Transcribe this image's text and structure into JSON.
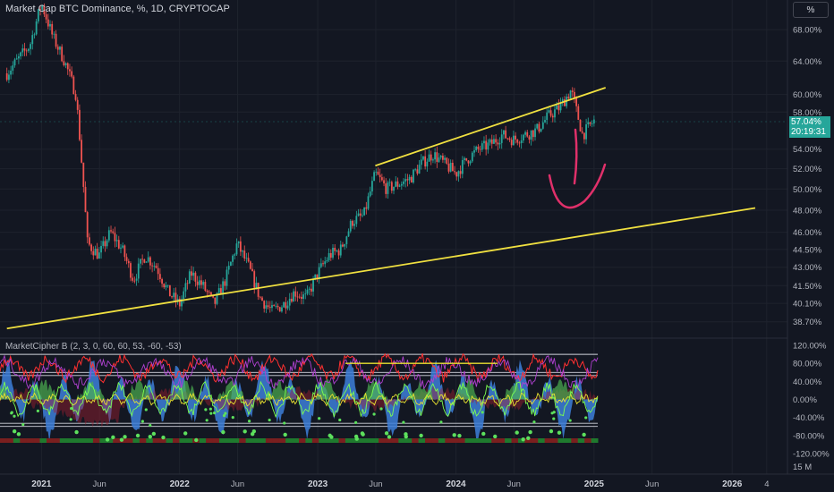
{
  "header": {
    "title": "Market Cap BTC Dominance, %, 1D, CRYPTOCAP",
    "unit_badge": "%"
  },
  "indicator": {
    "title": "MarketCipher B (2, 3, 0, 60, 60, 53, -60, -53)"
  },
  "price_badge": {
    "value": "57.04%",
    "countdown": "20:19:31"
  },
  "colors": {
    "background": "#131722",
    "trendline": "#f0e040",
    "annotation_arrow": "#e0306a",
    "up_candle": "#26a69a",
    "down_candle": "#ef5350",
    "wave_blue": "#3d7fd9",
    "wave_red": "#ff3030",
    "wave_green": "#4caf50",
    "money_flow_yellow": "#e8e030"
  },
  "chart_data": {
    "type": "candlestick",
    "title": "Market Cap BTC Dominance, %, 1D, CRYPTOCAP",
    "y_axis": {
      "scale": "log",
      "ylim": [
        37.5,
        72.0
      ],
      "ticks": [
        "68.00%",
        "64.00%",
        "60.00%",
        "58.00%",
        "54.00%",
        "52.00%",
        "50.00%",
        "48.00%",
        "46.00%",
        "44.50%",
        "43.00%",
        "41.50%",
        "40.10%",
        "38.70%"
      ]
    },
    "x_axis": {
      "ticks": [
        "2021",
        "Jun",
        "2022",
        "Jun",
        "2023",
        "Jun",
        "2024",
        "Jun",
        "2025",
        "Jun",
        "2026",
        "4"
      ]
    },
    "series": {
      "x": [
        "2020-10",
        "2020-12",
        "2021-01",
        "2021-02",
        "2021-03",
        "2021-04",
        "2021-05",
        "2021-06",
        "2021-07",
        "2021-08",
        "2021-09",
        "2021-10",
        "2021-11",
        "2021-12",
        "2022-01",
        "2022-02",
        "2022-03",
        "2022-04",
        "2022-05",
        "2022-06",
        "2022-07",
        "2022-08",
        "2022-09",
        "2022-10",
        "2022-11",
        "2022-12",
        "2023-01",
        "2023-02",
        "2023-03",
        "2023-04",
        "2023-05",
        "2023-06",
        "2023-07",
        "2023-08",
        "2023-09",
        "2023-10",
        "2023-11",
        "2023-12",
        "2024-01",
        "2024-02",
        "2024-03",
        "2024-04",
        "2024-05",
        "2024-06",
        "2024-07",
        "2024-08",
        "2024-09",
        "2024-10",
        "2024-11",
        "2024-12",
        "2025-01"
      ],
      "close": [
        62.5,
        66,
        71.5,
        67,
        64,
        60,
        45,
        44,
        46,
        44.5,
        42,
        44,
        43,
        41,
        40,
        42.5,
        41.5,
        40,
        42,
        45,
        43,
        40.5,
        39.5,
        40,
        41,
        40.5,
        42.5,
        44,
        44.5,
        47,
        47.5,
        51.5,
        50,
        50.5,
        51,
        52.5,
        53.5,
        52.5,
        51.5,
        53,
        54,
        54.5,
        55.5,
        55,
        55.5,
        56,
        57.5,
        58.5,
        60.5,
        55.5,
        57.04
      ]
    },
    "last_price": "57.04%",
    "trendlines": [
      {
        "name": "lower support",
        "from": [
          "2020-10",
          38.2
        ],
        "to": [
          "2026-03",
          48.2
        ]
      },
      {
        "name": "upper channel",
        "from": [
          "2023-06",
          52.3
        ],
        "to": [
          "2025-02",
          60.8
        ]
      }
    ],
    "indicator": {
      "name": "MarketCipher B",
      "params": [
        2,
        3,
        0,
        60,
        60,
        53,
        -60,
        -53
      ],
      "y_ticks": [
        "120.00%",
        "80.00%",
        "40.00%",
        "0.00%",
        "-40.00%",
        "-80.00%",
        "-120.00%"
      ],
      "levels": [
        100,
        60,
        53,
        0,
        -53,
        -60
      ]
    },
    "volume_axis_label": "15 M"
  }
}
